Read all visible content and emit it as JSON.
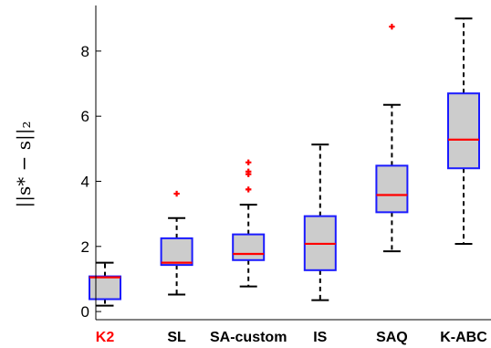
{
  "chart_data": {
    "type": "box",
    "ylabel": "||s* − s||₂",
    "ylim": [
      -0.25,
      9.4
    ],
    "yticks": [
      0,
      2,
      4,
      6,
      8
    ],
    "grid": false,
    "colors": {
      "box_fill": "#cccccc",
      "box_edge": "#1a1aff",
      "median": "#ff0000",
      "whisker": "#000000",
      "outlier": "#ff0000",
      "highlight_label": "#ff0000"
    },
    "categories": [
      {
        "label": "K2",
        "highlight": true,
        "whisker_low": 0.18,
        "q1": 0.38,
        "median": 1.05,
        "q3": 1.08,
        "whisker_high": 1.5,
        "outliers": []
      },
      {
        "label": "SL",
        "highlight": false,
        "whisker_low": 0.52,
        "q1": 1.43,
        "median": 1.5,
        "q3": 2.25,
        "whisker_high": 2.87,
        "outliers": [
          3.62
        ]
      },
      {
        "label": "SA-custom",
        "highlight": false,
        "whisker_low": 0.77,
        "q1": 1.58,
        "median": 1.77,
        "q3": 2.37,
        "whisker_high": 3.28,
        "outliers": [
          3.75,
          4.22,
          4.3,
          4.58
        ]
      },
      {
        "label": "IS",
        "highlight": false,
        "whisker_low": 0.35,
        "q1": 1.27,
        "median": 2.08,
        "q3": 2.93,
        "whisker_high": 5.13,
        "outliers": []
      },
      {
        "label": "SAQ",
        "highlight": false,
        "whisker_low": 1.85,
        "q1": 3.05,
        "median": 3.58,
        "q3": 4.48,
        "whisker_high": 6.35,
        "outliers": [
          8.75
        ]
      },
      {
        "label": "K-ABC",
        "highlight": false,
        "whisker_low": 2.08,
        "q1": 4.4,
        "median": 5.28,
        "q3": 6.7,
        "whisker_high": 9.0,
        "outliers": []
      }
    ]
  }
}
